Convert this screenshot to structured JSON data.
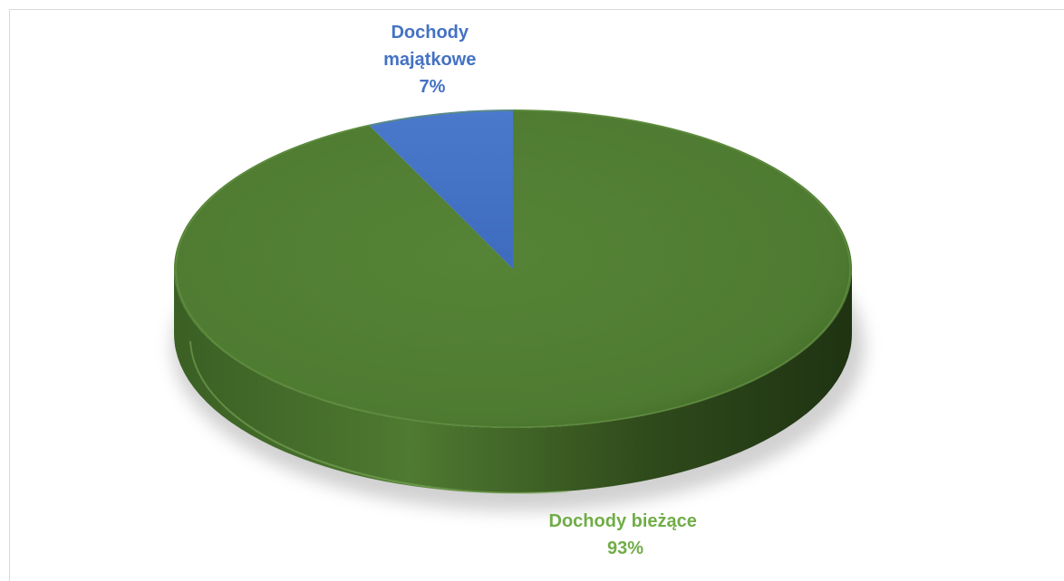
{
  "chart_data": {
    "type": "pie",
    "title": "",
    "categories": [
      "Dochody bieżące",
      "Dochody majątkowe"
    ],
    "values": [
      93,
      7
    ],
    "value_labels": [
      "93%",
      "7%"
    ],
    "colors": [
      "#548235",
      "#4472c4"
    ],
    "label_colors": [
      "#70ad47",
      "#4472c4"
    ],
    "legend": "none",
    "style": "3d"
  }
}
